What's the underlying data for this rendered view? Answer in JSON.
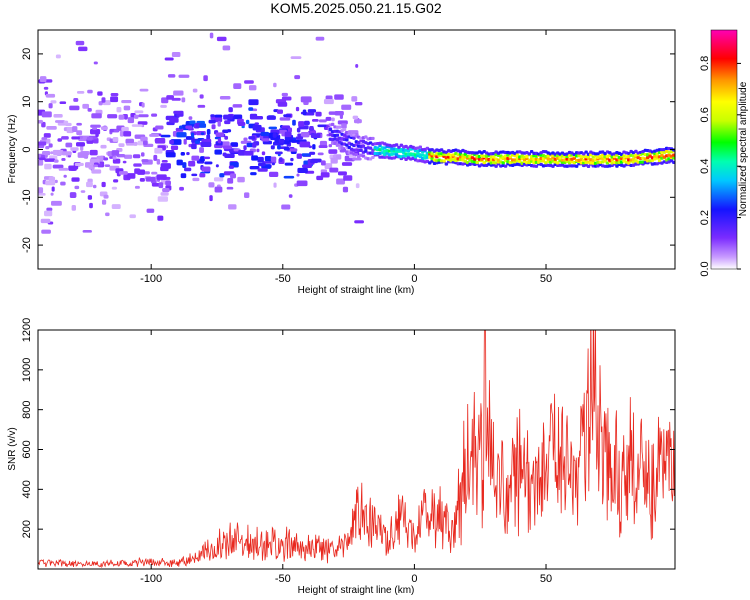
{
  "title": "KOM5.2025.050.21.15.G02",
  "chart_data": [
    {
      "type": "heatmap",
      "xlabel": "Height of straight line (km)",
      "ylabel": "Frequency (Hz)",
      "xlim": [
        -143,
        99
      ],
      "ylim": [
        -25,
        25
      ],
      "x_ticks": [
        -100,
        -50,
        0,
        50
      ],
      "y_ticks": [
        -20,
        -10,
        0,
        10,
        20
      ],
      "colorbar": {
        "label": "Normalized spectral amplitude",
        "range": [
          0,
          0.93
        ],
        "ticks": [
          "0.0",
          "0.2",
          "0.4",
          "0.6",
          "0.8"
        ],
        "colormap": "rainbow (violet-blue-cyan-green-yellow-red-magenta)"
      },
      "ridge": {
        "x": [
          -30,
          -25,
          -20,
          -15,
          -10,
          -5,
          0,
          5,
          10,
          20,
          30,
          40,
          50,
          60,
          70,
          80,
          90,
          97
        ],
        "frequency": [
          3,
          1.5,
          0.5,
          0,
          -0.3,
          -0.6,
          -0.8,
          -1.2,
          -1.5,
          -1.8,
          -2,
          -2,
          -2,
          -2,
          -2,
          -2,
          -1.6,
          -1.2
        ]
      },
      "scatter_region": {
        "x_range": [
          -143,
          -30
        ],
        "frequency_range": [
          -20,
          25
        ]
      }
    },
    {
      "type": "line",
      "xlabel": "Height of straight line (km)",
      "ylabel": "SNR (v/v)",
      "xlim": [
        -143,
        99
      ],
      "ylim": [
        0,
        1200
      ],
      "x_ticks": [
        -100,
        -50,
        0,
        50
      ],
      "y_ticks": [
        200,
        400,
        600,
        800,
        1000,
        1200
      ],
      "series": [
        {
          "color": "#e8281e",
          "x": [
            -143,
            -120,
            -100,
            -90,
            -82,
            -75,
            -70,
            -60,
            -50,
            -40,
            -30,
            -25,
            -22,
            -20,
            -15,
            -10,
            -5,
            0,
            5,
            10,
            15,
            18,
            20,
            25,
            27,
            30,
            35,
            40,
            45,
            50,
            55,
            60,
            65,
            67,
            70,
            75,
            80,
            85,
            90,
            95,
            97
          ],
          "values": [
            30,
            25,
            35,
            30,
            60,
            120,
            150,
            140,
            120,
            110,
            100,
            150,
            250,
            320,
            200,
            130,
            250,
            150,
            300,
            250,
            200,
            400,
            500,
            600,
            900,
            500,
            350,
            600,
            400,
            500,
            550,
            450,
            600,
            1100,
            650,
            500,
            450,
            600,
            400,
            600,
            500
          ]
        }
      ]
    }
  ]
}
